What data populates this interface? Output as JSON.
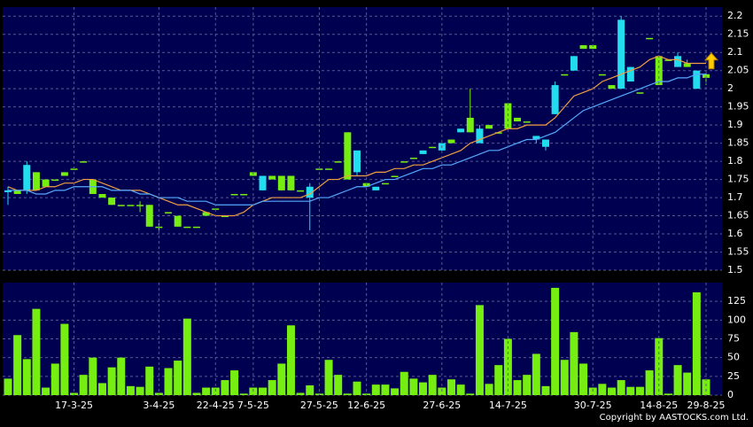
{
  "chart_data": [
    {
      "type": "candlestick",
      "up_color": "#77ee11",
      "down_color": "#22ddee",
      "ylim": [
        1.5,
        2.225
      ],
      "yticks": [
        1.5,
        1.55,
        1.6,
        1.65,
        1.7,
        1.75,
        1.8,
        1.85,
        1.9,
        1.95,
        2,
        2.05,
        2.1,
        2.15,
        2.2
      ],
      "grid": true,
      "open": [
        1.72,
        1.71,
        1.79,
        1.72,
        1.73,
        1.75,
        1.76,
        1.78,
        1.8,
        1.71,
        1.7,
        1.68,
        1.68,
        1.68,
        1.68,
        1.62,
        1.62,
        1.66,
        1.62,
        1.62,
        1.62,
        1.65,
        1.67,
        1.65,
        1.71,
        1.71,
        1.76,
        1.76,
        1.75,
        1.72,
        1.72,
        1.72,
        1.73,
        1.78,
        1.78,
        1.8,
        1.75,
        1.83,
        1.73,
        1.73,
        1.74,
        1.76,
        1.8,
        1.81,
        1.83,
        1.84,
        1.85,
        1.85,
        1.89,
        1.88,
        1.89,
        1.89,
        1.88,
        1.89,
        1.91,
        1.91,
        1.87,
        1.86,
        2.01,
        2.04,
        2.09,
        2.11,
        2.11,
        2.04,
        2,
        2.19,
        2.06,
        1.99,
        2.14,
        2.01,
        2.08,
        2.09,
        2.06,
        2.05,
        2.03
      ],
      "high": [
        1.73,
        1.72,
        1.8,
        1.77,
        1.75,
        1.75,
        1.77,
        1.78,
        1.8,
        1.75,
        1.71,
        1.7,
        1.68,
        1.68,
        1.69,
        1.68,
        1.63,
        1.66,
        1.65,
        1.62,
        1.62,
        1.66,
        1.67,
        1.65,
        1.71,
        1.71,
        1.77,
        1.76,
        1.76,
        1.76,
        1.76,
        1.72,
        1.74,
        1.78,
        1.78,
        1.8,
        1.88,
        1.83,
        1.74,
        1.73,
        1.74,
        1.76,
        1.8,
        1.81,
        1.83,
        1.84,
        1.85,
        1.86,
        1.89,
        2,
        1.9,
        1.9,
        1.88,
        1.96,
        1.92,
        1.91,
        1.87,
        1.86,
        2.02,
        2.04,
        2.09,
        2.12,
        2.12,
        2.04,
        2.01,
        2.2,
        2.06,
        1.99,
        2.14,
        2.09,
        2.08,
        2.1,
        2.08,
        2.05,
        2.05
      ],
      "low": [
        1.68,
        1.71,
        1.71,
        1.72,
        1.73,
        1.75,
        1.76,
        1.78,
        1.8,
        1.71,
        1.7,
        1.68,
        1.68,
        1.68,
        1.66,
        1.62,
        1.61,
        1.66,
        1.62,
        1.62,
        1.62,
        1.65,
        1.67,
        1.65,
        1.71,
        1.71,
        1.76,
        1.72,
        1.75,
        1.72,
        1.72,
        1.72,
        1.61,
        1.78,
        1.78,
        1.8,
        1.75,
        1.76,
        1.73,
        1.72,
        1.74,
        1.76,
        1.8,
        1.81,
        1.82,
        1.84,
        1.83,
        1.85,
        1.88,
        1.88,
        1.85,
        1.89,
        1.88,
        1.89,
        1.91,
        1.91,
        1.85,
        1.83,
        1.93,
        2.04,
        2.05,
        2.11,
        2.11,
        2.04,
        2,
        2,
        2.02,
        1.99,
        2.14,
        2.01,
        2.08,
        2.06,
        2.06,
        2,
        2.01
      ],
      "close": [
        1.715,
        1.72,
        1.72,
        1.77,
        1.75,
        1.75,
        1.77,
        1.78,
        1.8,
        1.75,
        1.71,
        1.7,
        1.68,
        1.68,
        1.68,
        1.68,
        1.62,
        1.66,
        1.65,
        1.62,
        1.62,
        1.66,
        1.67,
        1.65,
        1.71,
        1.71,
        1.77,
        1.72,
        1.76,
        1.76,
        1.76,
        1.72,
        1.7,
        1.78,
        1.78,
        1.8,
        1.88,
        1.77,
        1.74,
        1.72,
        1.74,
        1.76,
        1.8,
        1.81,
        1.82,
        1.84,
        1.83,
        1.86,
        1.88,
        1.92,
        1.85,
        1.9,
        1.88,
        1.96,
        1.92,
        1.91,
        1.86,
        1.84,
        1.93,
        2.04,
        2.05,
        2.12,
        2.12,
        2.04,
        2.01,
        2,
        2.02,
        1.99,
        2.14,
        2.09,
        2.08,
        2.06,
        2.07,
        2,
        2.04
      ],
      "series": [
        {
          "color": "#f0a040",
          "values": [
            1.73,
            1.72,
            1.72,
            1.72,
            1.73,
            1.73,
            1.74,
            1.74,
            1.75,
            1.75,
            1.74,
            1.73,
            1.72,
            1.72,
            1.72,
            1.71,
            1.7,
            1.69,
            1.68,
            1.68,
            1.67,
            1.66,
            1.65,
            1.65,
            1.65,
            1.66,
            1.68,
            1.69,
            1.7,
            1.7,
            1.7,
            1.7,
            1.71,
            1.73,
            1.75,
            1.75,
            1.76,
            1.76,
            1.76,
            1.77,
            1.77,
            1.78,
            1.78,
            1.79,
            1.79,
            1.8,
            1.81,
            1.82,
            1.83,
            1.85,
            1.86,
            1.87,
            1.88,
            1.89,
            1.89,
            1.9,
            1.9,
            1.9,
            1.92,
            1.95,
            1.98,
            1.99,
            2,
            2.02,
            2.03,
            2.04,
            2.05,
            2.06,
            2.08,
            2.09,
            2.08,
            2.08,
            2.07,
            2.07,
            2.07
          ]
        },
        {
          "color": "#55aaff",
          "values": [
            1.72,
            1.72,
            1.72,
            1.71,
            1.71,
            1.72,
            1.72,
            1.73,
            1.73,
            1.73,
            1.73,
            1.72,
            1.72,
            1.72,
            1.71,
            1.71,
            1.7,
            1.7,
            1.7,
            1.69,
            1.69,
            1.69,
            1.68,
            1.68,
            1.68,
            1.68,
            1.68,
            1.69,
            1.69,
            1.69,
            1.69,
            1.69,
            1.69,
            1.7,
            1.7,
            1.71,
            1.72,
            1.73,
            1.73,
            1.74,
            1.75,
            1.75,
            1.76,
            1.77,
            1.78,
            1.78,
            1.79,
            1.79,
            1.8,
            1.81,
            1.82,
            1.83,
            1.83,
            1.84,
            1.85,
            1.86,
            1.86,
            1.87,
            1.88,
            1.9,
            1.92,
            1.94,
            1.95,
            1.96,
            1.97,
            1.98,
            1.99,
            2,
            2.01,
            2.02,
            2.02,
            2.03,
            2.03,
            2.04,
            2.04
          ]
        }
      ]
    },
    {
      "type": "bar",
      "color": "#77ee11",
      "ylim": [
        0,
        150
      ],
      "yticks": [
        0,
        25,
        50,
        75,
        100,
        125
      ],
      "grid": true,
      "x": [
        null,
        null,
        null,
        null,
        null,
        null,
        null,
        "17-3-25",
        null,
        null,
        null,
        null,
        null,
        null,
        null,
        null,
        "3-4-25",
        null,
        null,
        null,
        null,
        null,
        "22-4-25",
        null,
        null,
        null,
        "7-5-25",
        null,
        null,
        null,
        null,
        null,
        null,
        "27-5-25",
        null,
        null,
        null,
        null,
        "12-6-25",
        null,
        null,
        null,
        null,
        null,
        null,
        null,
        "27-6-25",
        null,
        null,
        null,
        null,
        null,
        null,
        "14-7-25",
        null,
        null,
        null,
        null,
        null,
        null,
        null,
        null,
        "30-7-25",
        null,
        null,
        null,
        null,
        null,
        null,
        "14-8-25",
        null,
        null,
        null,
        null,
        "29-8-25"
      ],
      "values": [
        22,
        80,
        48,
        115,
        10,
        42,
        95,
        3,
        27,
        50,
        16,
        37,
        50,
        12,
        11,
        38,
        3,
        36,
        46,
        102,
        3,
        10,
        10,
        20,
        33,
        2,
        10,
        10,
        20,
        42,
        93,
        3,
        13,
        2,
        47,
        27,
        2,
        18,
        2,
        14,
        14,
        9,
        31,
        22,
        17,
        27,
        10,
        21,
        14,
        2,
        120,
        15,
        40,
        75,
        20,
        27,
        55,
        12,
        143,
        47,
        84,
        42,
        10,
        15,
        10,
        20,
        11,
        11,
        33,
        76,
        2,
        40,
        30,
        137,
        21
      ]
    }
  ],
  "footer": "Copyright by AASTOCKS.com Ltd."
}
